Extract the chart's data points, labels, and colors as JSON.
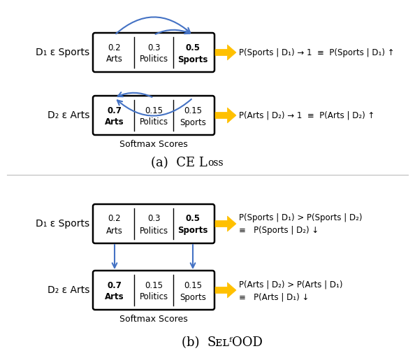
{
  "fig_width": 5.94,
  "fig_height": 5.12,
  "bg_color": "#ffffff",
  "panel_a": {
    "title_pre": "(a)  CE L",
    "title_sc": "oss",
    "d1_label": "D₁ ε Sports",
    "d2_label": "D₂ ε Arts",
    "softmax_label": "Softmax Scores",
    "box1": {
      "cols": [
        "0.2\nArts",
        "0.3\nPolitics",
        "0.5\nSports"
      ],
      "bold": [
        false,
        false,
        true
      ]
    },
    "box2": {
      "cols": [
        "0.7\nArts",
        "0.15\nPolitics",
        "0.15\nSports"
      ],
      "bold": [
        true,
        false,
        false
      ]
    },
    "arrow1_text": "P(Sports | D₁) → 1  ≡  P(Sports | D₁) ↑",
    "arrow2_text": "P(Arts | D₂) → 1  ≡  P(Arts | D₂) ↑"
  },
  "panel_b": {
    "title_pre": "(b)  ",
    "title_sc": "SᴇʟᶠOOD",
    "d1_label": "D₁ ε Sports",
    "d2_label": "D₂ ε Arts",
    "softmax_label": "Softmax Scores",
    "box1": {
      "cols": [
        "0.2\nArts",
        "0.3\nPolitics",
        "0.5\nSports"
      ],
      "bold": [
        false,
        false,
        true
      ]
    },
    "box2": {
      "cols": [
        "0.7\nArts",
        "0.15\nPolitics",
        "0.15\nSports"
      ],
      "bold": [
        true,
        false,
        false
      ]
    },
    "arrow1_text1": "P(Sports | D₁) > P(Sports | D₂)",
    "arrow1_text2": "≡   P(Sports | D₂) ↓",
    "arrow2_text1": "P(Arts | D₂) > P(Arts | D₁)",
    "arrow2_text2": "≡   P(Arts | D₁) ↓"
  },
  "blue_arrow_color": "#4472C4",
  "gold_arrow_color": "#FFC000"
}
